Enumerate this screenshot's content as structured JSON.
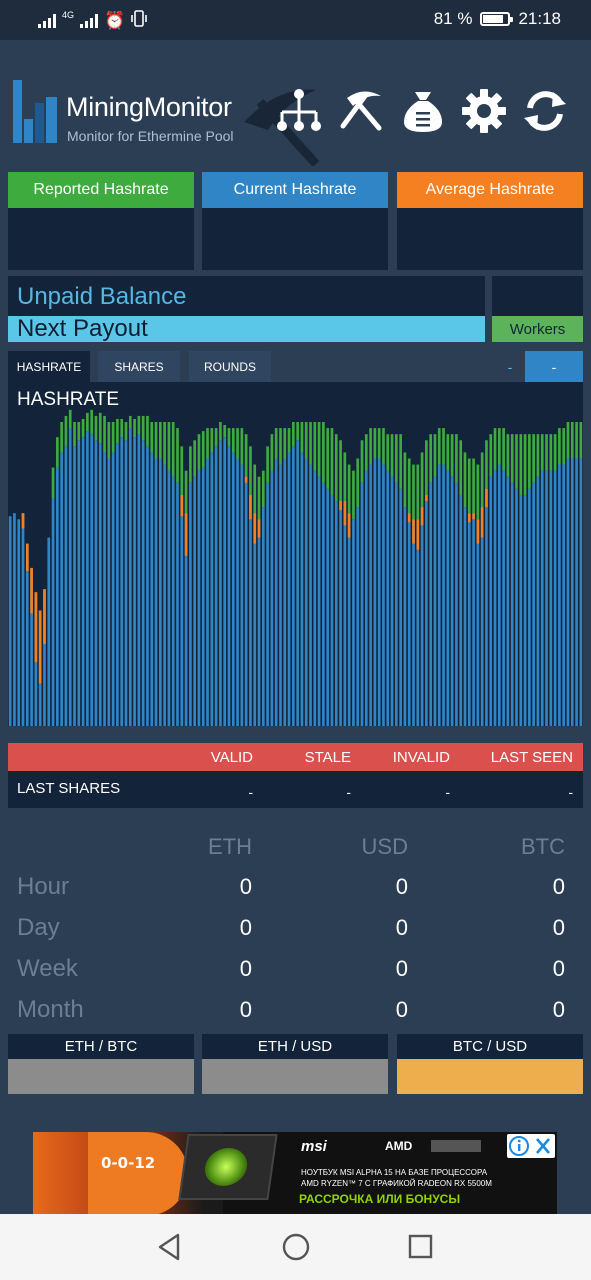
{
  "status_bar": {
    "network": "4G",
    "battery": "81 %",
    "battery_level": 0.81,
    "time": "21:18",
    "alarm_icon": "alarm-icon",
    "vibrate_icon": "vibrate-icon"
  },
  "header": {
    "app_name": "MiningMonitor",
    "subtitle": "Monitor for Ethermine Pool",
    "actions": [
      {
        "icon": "network-tree-icon"
      },
      {
        "icon": "pickaxe-icon"
      },
      {
        "icon": "money-bag-icon"
      },
      {
        "icon": "gear-icon"
      },
      {
        "icon": "refresh-icon"
      }
    ]
  },
  "hashrate_tiles": [
    {
      "label": "Reported Hashrate",
      "color": "#3dab3d",
      "value": ""
    },
    {
      "label": "Current Hashrate",
      "color": "#2f85c6",
      "value": ""
    },
    {
      "label": "Average Hashrate",
      "color": "#f58021",
      "value": ""
    }
  ],
  "balance": {
    "unpaid_label": "Unpaid Balance",
    "next_payout_label": "Next Payout",
    "workers_label": "Workers"
  },
  "tabs": [
    {
      "label": "HASHRATE",
      "active": true
    },
    {
      "label": "SHARES",
      "active": false
    },
    {
      "label": "ROUNDS",
      "active": false
    }
  ],
  "tab_dash_1": "-",
  "tab_dash_2": "-",
  "colors": {
    "accent_blue": "#2f85c6",
    "green": "#3dab3d",
    "orange": "#f58021",
    "red_header": "#d9504d",
    "panel": "#13243a",
    "background": "#2c3e54",
    "btc_usd_bar": "#efae4d",
    "eth_bar": "#8c8c8c"
  },
  "chart_data": {
    "type": "bar",
    "title": "HASHRATE",
    "stacked": true,
    "grid": false,
    "legend": "none",
    "ylim": [
      0,
      100
    ],
    "series": [
      {
        "color": "#2f85c6",
        "values": [
          69,
          70,
          68,
          70,
          60,
          52,
          44,
          38,
          45,
          62,
          75,
          85,
          90,
          92,
          98,
          92,
          94,
          95,
          97,
          96,
          94,
          93,
          90,
          88,
          90,
          93,
          95,
          94,
          98,
          95,
          96,
          94,
          92,
          90,
          88,
          88,
          86,
          84,
          82,
          80,
          76,
          70,
          80,
          82,
          84,
          85,
          88,
          90,
          92,
          94,
          95,
          92,
          90,
          88,
          86,
          82,
          76,
          70,
          68,
          72,
          80,
          84,
          88,
          86,
          88,
          90,
          92,
          94,
          90,
          88,
          86,
          84,
          82,
          80,
          78,
          76,
          74,
          74,
          74,
          70,
          68,
          72,
          80,
          84,
          86,
          88,
          88,
          86,
          84,
          82,
          80,
          78,
          72,
          70,
          68,
          68,
          72,
          76,
          80,
          82,
          86,
          86,
          84,
          82,
          80,
          76,
          72,
          70,
          70,
          68,
          72,
          78,
          82,
          84,
          86,
          84,
          82,
          80,
          78,
          76,
          76,
          78,
          80,
          82,
          84,
          84,
          84,
          84,
          86,
          86,
          88,
          88,
          88,
          88
        ]
      },
      {
        "color": "#3dab3d",
        "values": [
          0,
          0,
          0,
          0,
          0,
          0,
          0,
          0,
          0,
          0,
          10,
          10,
          10,
          10,
          6,
          8,
          6,
          6,
          6,
          8,
          8,
          10,
          12,
          12,
          10,
          8,
          6,
          6,
          4,
          6,
          6,
          8,
          10,
          10,
          12,
          12,
          14,
          16,
          18,
          18,
          16,
          14,
          12,
          12,
          12,
          12,
          10,
          8,
          6,
          6,
          4,
          6,
          8,
          10,
          12,
          14,
          16,
          16,
          14,
          12,
          12,
          12,
          10,
          12,
          10,
          8,
          8,
          6,
          10,
          12,
          14,
          16,
          18,
          20,
          20,
          22,
          22,
          20,
          16,
          16,
          16,
          16,
          14,
          12,
          12,
          10,
          10,
          12,
          12,
          14,
          16,
          18,
          18,
          18,
          18,
          18,
          18,
          18,
          16,
          14,
          12,
          12,
          12,
          14,
          16,
          18,
          18,
          18,
          18,
          18,
          18,
          16,
          14,
          14,
          12,
          14,
          14,
          16,
          18,
          20,
          20,
          18,
          16,
          14,
          12,
          12,
          12,
          12,
          12,
          12,
          12,
          12,
          12,
          12
        ]
      },
      {
        "color": "#f58021",
        "values": [
          0,
          0,
          0,
          5,
          9,
          15,
          23,
          24,
          18,
          0,
          0,
          0,
          0,
          0,
          0,
          0,
          0,
          0,
          0,
          0,
          0,
          0,
          0,
          0,
          0,
          0,
          0,
          0,
          0,
          0,
          0,
          0,
          0,
          0,
          0,
          0,
          0,
          0,
          0,
          0,
          7,
          14,
          0,
          0,
          0,
          0,
          0,
          0,
          0,
          0,
          0,
          0,
          0,
          0,
          0,
          2,
          8,
          10,
          6,
          0,
          0,
          0,
          0,
          0,
          0,
          0,
          0,
          0,
          0,
          0,
          0,
          0,
          0,
          0,
          0,
          0,
          0,
          3,
          8,
          8,
          0,
          0,
          0,
          0,
          0,
          0,
          0,
          0,
          0,
          0,
          0,
          0,
          0,
          3,
          8,
          10,
          6,
          2,
          0,
          0,
          0,
          0,
          0,
          0,
          0,
          0,
          0,
          3,
          2,
          8,
          10,
          6,
          0,
          0,
          0,
          0,
          0,
          0,
          0,
          0,
          0,
          0,
          0,
          0,
          0,
          0,
          0,
          0,
          0,
          0
        ]
      }
    ]
  },
  "last_shares": {
    "columns": [
      "VALID",
      "STALE",
      "INVALID",
      "LAST SEEN"
    ],
    "row_label": "LAST SHARES",
    "values": [
      "-",
      "-",
      "-",
      "-"
    ]
  },
  "earnings": {
    "currencies": [
      "ETH",
      "USD",
      "BTC"
    ],
    "rows": [
      {
        "period": "Hour",
        "values": [
          "0",
          "0",
          "0"
        ]
      },
      {
        "period": "Day",
        "values": [
          "0",
          "0",
          "0"
        ]
      },
      {
        "period": "Week",
        "values": [
          "0",
          "0",
          "0"
        ]
      },
      {
        "period": "Month",
        "values": [
          "0",
          "0",
          "0"
        ]
      }
    ]
  },
  "rates": [
    {
      "label": "ETH / BTC",
      "color": "#8c8c8c"
    },
    {
      "label": "ETH / USD",
      "color": "#8c8c8c"
    },
    {
      "label": "BTC / USD",
      "color": "#efae4d"
    }
  ],
  "ad": {
    "price_text": "0-0-12",
    "brand": "msi",
    "brand2": "AMD",
    "line1": "НОУТБУК MSI ALPHA 15 НА БАЗЕ ПРОЦЕССОРА",
    "line2": "AMD RYZEN™ 7 С ГРАФИКОЙ RADEON RX 5500M",
    "line3": "РАССРОЧКА ИЛИ БОНУСЫ"
  }
}
